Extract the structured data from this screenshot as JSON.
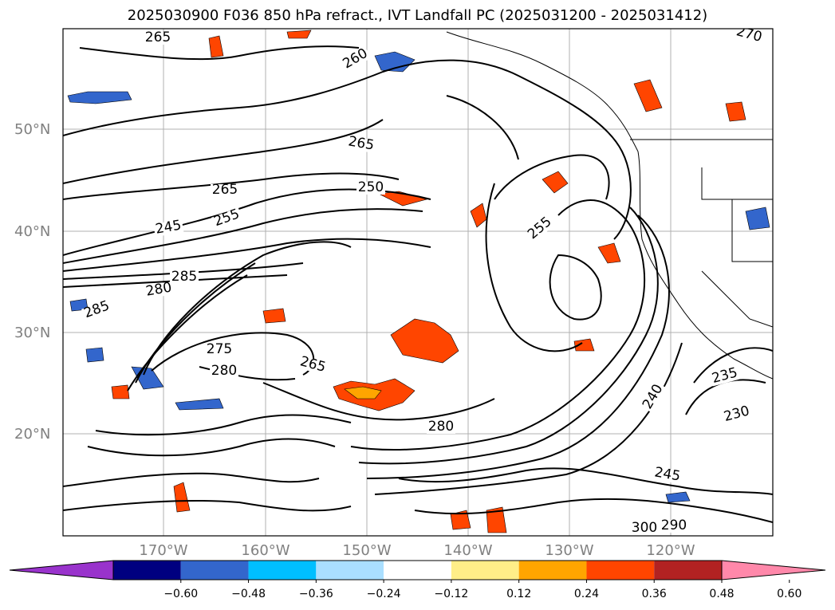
{
  "title": "2025030900 F036 850 hPa refract., IVT Landfall PC (2025031200 - 2025031412)",
  "map": {
    "lat_labels": [
      "50°N",
      "40°N",
      "30°N",
      "20°N"
    ],
    "lon_labels": [
      "170°W",
      "160°W",
      "150°W",
      "140°W",
      "130°W",
      "120°W"
    ],
    "contour_labels": [
      "265",
      "260",
      "265",
      "250",
      "265",
      "245",
      "255",
      "285",
      "280",
      "275",
      "280",
      "265",
      "280",
      "285",
      "240",
      "235",
      "230",
      "245",
      "300",
      "290",
      "270",
      "255"
    ],
    "colors": {
      "land_outline": "#000000",
      "grid": "#b0b0b0",
      "positive_fill": "#ff4500",
      "negative_fill": "#3366cc"
    }
  },
  "colorbar": {
    "ticks": [
      "−0.60",
      "−0.48",
      "−0.36",
      "−0.24",
      "−0.12",
      "0.12",
      "0.24",
      "0.36",
      "0.48",
      "0.60"
    ],
    "colors": [
      "#9933cc",
      "#000080",
      "#3366cc",
      "#00bfff",
      "#aadfff",
      "#ffffff",
      "#ffee88",
      "#ffa500",
      "#ff4500",
      "#b22222",
      "#ff88aa"
    ]
  }
}
